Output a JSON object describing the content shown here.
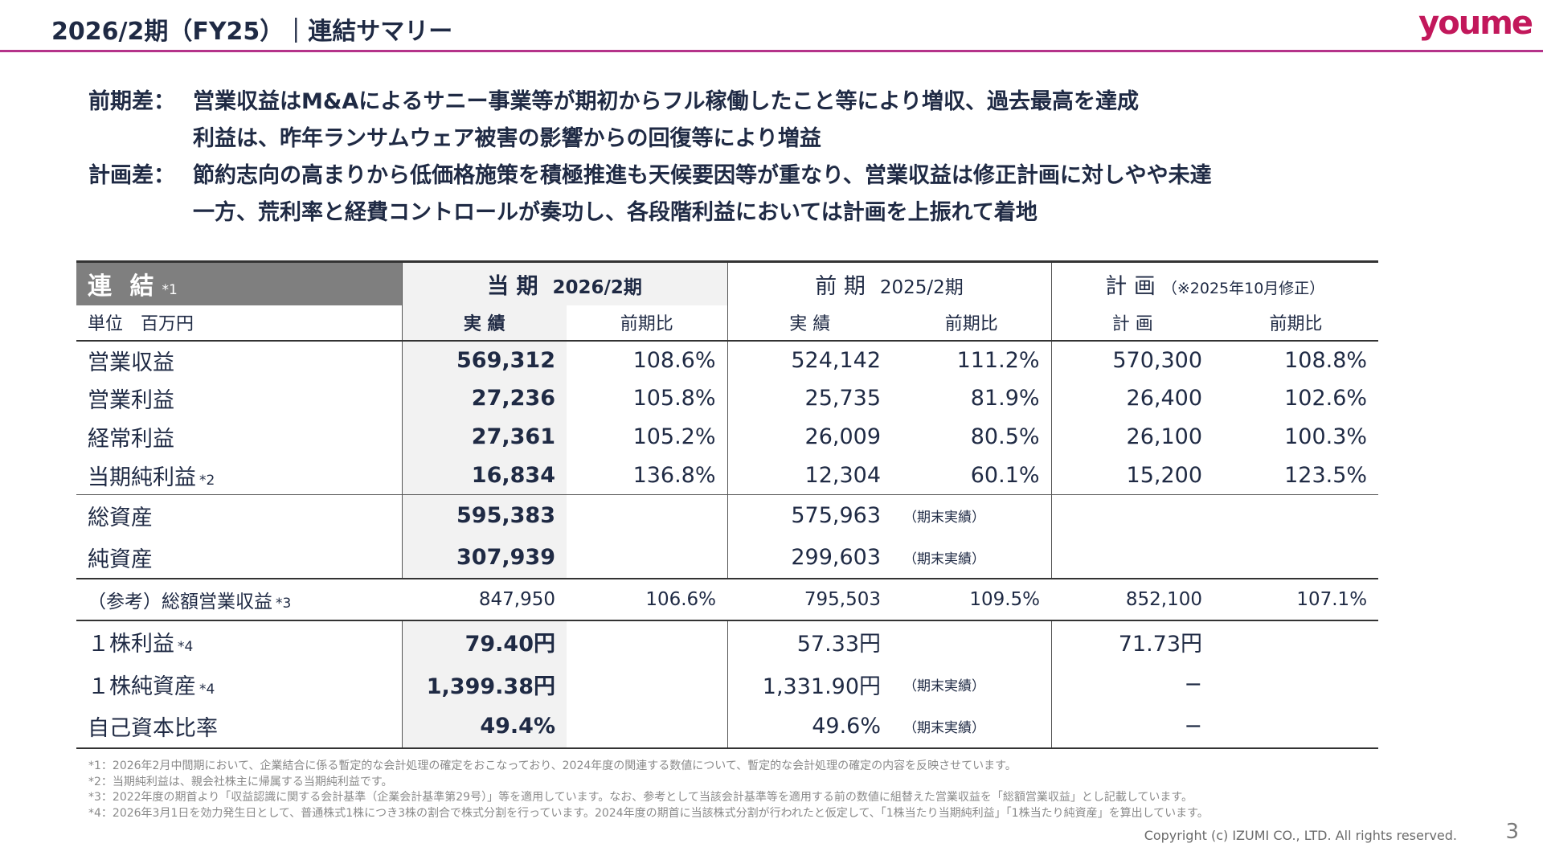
{
  "header": {
    "title": "2026/2期（FY25）｜連結サマリー",
    "logo": "youme",
    "accent_color": "#b5338a"
  },
  "summary": [
    {
      "label": "前期差：",
      "text": "営業収益はM&Aによるサニー事業等が期初からフル稼働したこと等により増収、過去最高を達成"
    },
    {
      "label": "",
      "text": "利益は、昨年ランサムウェア被害の影響からの回復等により増益"
    },
    {
      "label": "計画差：",
      "text": "節約志向の高まりから低価格施策を積極推進も天候要因等が重なり、営業収益は修正計画に対しやや未達"
    },
    {
      "label": "",
      "text": "一方、荒利率と経費コントロールが奏功し、各段階利益においては計画を上振れて着地"
    }
  ],
  "table": {
    "head_label": "連 結",
    "head_note": "*1",
    "unit": "単位　百万円",
    "current_period": {
      "title": "当 期",
      "sub": "2026/2期"
    },
    "prev_period": {
      "title": "前 期",
      "sub": "2025/2期"
    },
    "plan": {
      "title": "計 画",
      "sub": "（※2025年10月修正）"
    },
    "col_actual": "実 績",
    "col_yoy": "前期比",
    "col_plan": "計 画",
    "rows": [
      {
        "label": "営業収益",
        "note": "",
        "cur": "569,312",
        "cur_yoy": "108.6%",
        "prev": "524,142",
        "prev_yoy": "111.2%",
        "plan": "570,300",
        "plan_yoy": "108.8%"
      },
      {
        "label": "営業利益",
        "note": "",
        "cur": "27,236",
        "cur_yoy": "105.8%",
        "prev": "25,735",
        "prev_yoy": "81.9%",
        "plan": "26,400",
        "plan_yoy": "102.6%"
      },
      {
        "label": "経常利益",
        "note": "",
        "cur": "27,361",
        "cur_yoy": "105.2%",
        "prev": "26,009",
        "prev_yoy": "80.5%",
        "plan": "26,100",
        "plan_yoy": "100.3%"
      },
      {
        "label": "当期純利益",
        "note": "*2",
        "cur": "16,834",
        "cur_yoy": "136.8%",
        "prev": "12,304",
        "prev_yoy": "60.1%",
        "plan": "15,200",
        "plan_yoy": "123.5%"
      }
    ],
    "assets": [
      {
        "label": "総資産",
        "cur": "595,383",
        "prev": "575,963",
        "prev_note": "（期末実績）"
      },
      {
        "label": "純資産",
        "cur": "307,939",
        "prev": "299,603",
        "prev_note": "（期末実績）"
      }
    ],
    "reference": {
      "label": "（参考）総額営業収益",
      "note": "*3",
      "cur": "847,950",
      "cur_yoy": "106.6%",
      "prev": "795,503",
      "prev_yoy": "109.5%",
      "plan": "852,100",
      "plan_yoy": "107.1%"
    },
    "per_share": [
      {
        "label": "１株利益",
        "note": "*4",
        "cur": "79.40円",
        "prev": "57.33円",
        "prev_note": "",
        "plan": "71.73円"
      },
      {
        "label": "１株純資産",
        "note": "*4",
        "cur": "1,399.38円",
        "prev": "1,331.90円",
        "prev_note": "（期末実績）",
        "plan": "−"
      },
      {
        "label": "自己資本比率",
        "note": "",
        "cur": "49.4%",
        "prev": "49.6%",
        "prev_note": "（期末実績）",
        "plan": "−"
      }
    ]
  },
  "footnotes": [
    "*1：2026年2月中間期において、企業結合に係る暫定的な会計処理の確定をおこなっており、2024年度の関連する数値について、暫定的な会計処理の確定の内容を反映させています。",
    "*2：当期純利益は、親会社株主に帰属する当期純利益です。",
    "*3：2022年度の期首より「収益認識に関する会計基準（企業会計基準第29号）」等を適用しています。なお、参考として当該会計基準等を適用する前の数値に組替えた営業収益を「総額営業収益」とし記載しています。",
    "*4：2026年3月1日を効力発生日として、普通株式1株につき3株の割合で株式分割を行っています。2024年度の期首に当該株式分割が行われたと仮定して、「1株当たり当期純利益」「1株当たり純資産」を算出しています。"
  ],
  "copyright": "Copyright (c) IZUMI CO., LTD. All rights reserved.",
  "page_number": "3"
}
